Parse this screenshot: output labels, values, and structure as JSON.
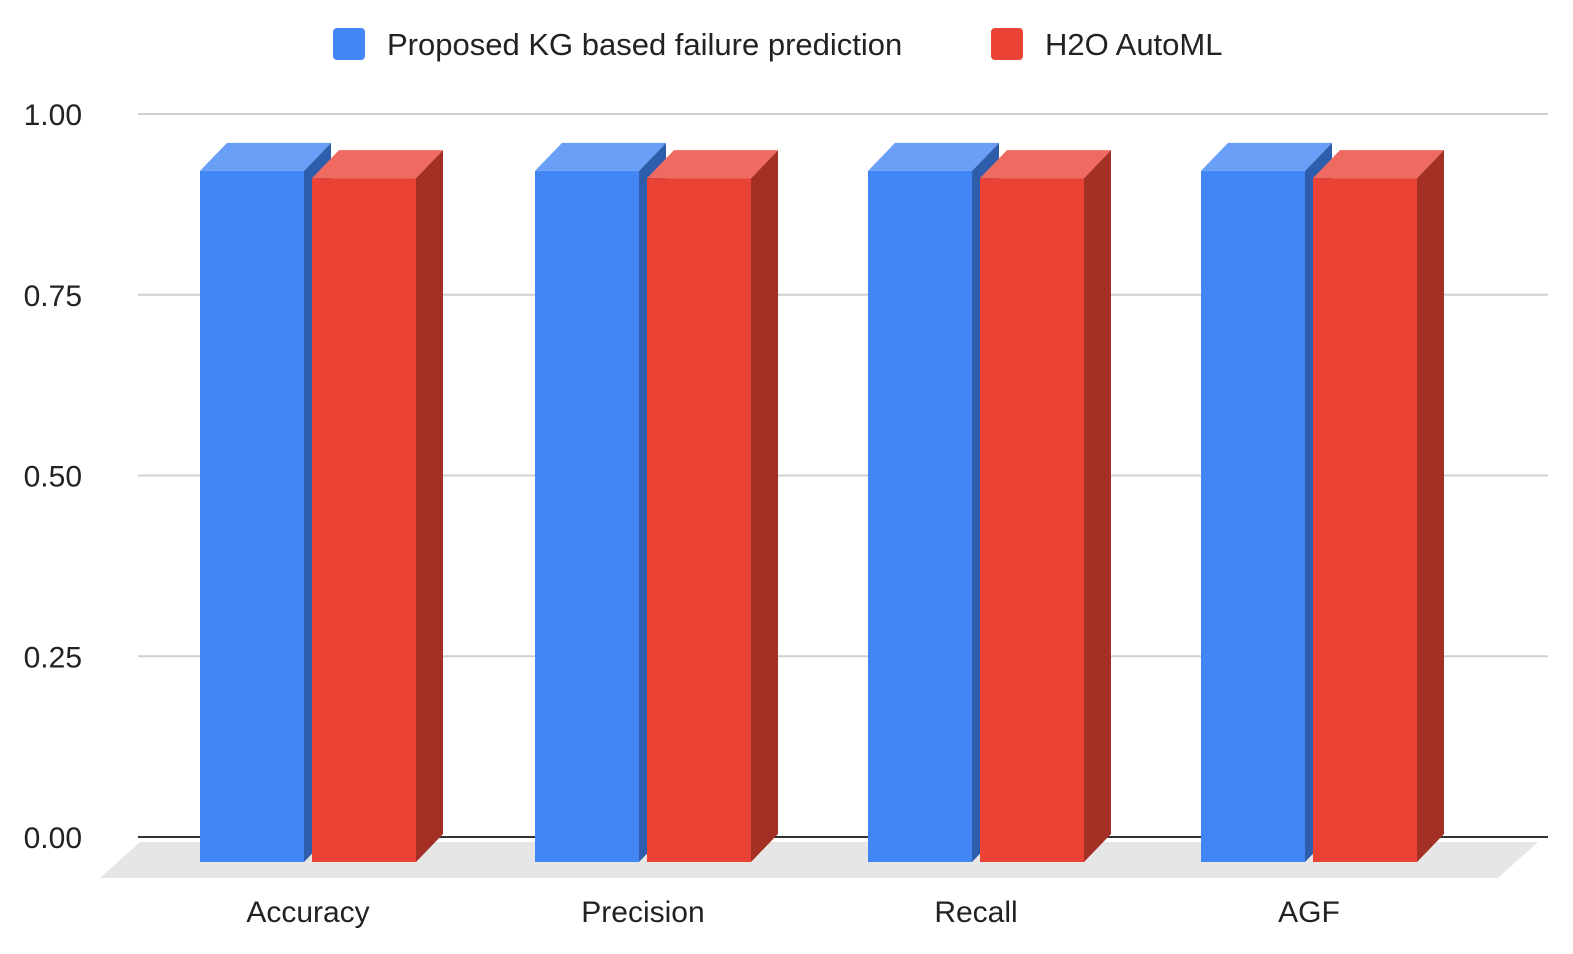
{
  "colors": {
    "series": [
      "#4285f4",
      "#ea4335"
    ],
    "series_top": [
      "#699ff7",
      "#ef6a60"
    ],
    "series_side": [
      "#2e5dab",
      "#a32f25"
    ],
    "grid": "#d0d0d0",
    "baseline": "#333333",
    "floor": "#e6e6e6"
  },
  "chart_data": {
    "type": "bar",
    "style": "3d-grouped",
    "categories": [
      "Accuracy",
      "Precision",
      "Recall",
      "AGF"
    ],
    "series": [
      {
        "name": "Proposed KG based failure prediction",
        "values": [
          0.96,
          0.96,
          0.96,
          0.96
        ]
      },
      {
        "name": "H2O AutoML",
        "values": [
          0.95,
          0.95,
          0.95,
          0.95
        ]
      }
    ],
    "yticks": [
      "0.00",
      "0.25",
      "0.50",
      "0.75",
      "1.00"
    ],
    "ytick_values": [
      0,
      0.25,
      0.5,
      0.75,
      1.0
    ],
    "ylim": [
      0,
      1.0
    ],
    "title": "",
    "xlabel": "",
    "ylabel": "",
    "grid": true,
    "legend_position": "top"
  }
}
